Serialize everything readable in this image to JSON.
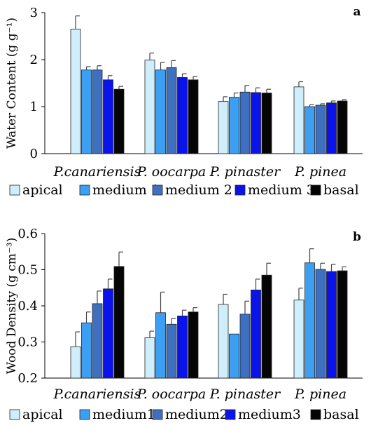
{
  "colors": {
    "apical": "#cdeefa",
    "medium 1": "#3d9ff2",
    "medium 2": "#3f6fbf",
    "medium 3": "#0a14ea",
    "basal": "#050505"
  },
  "chart_data": [
    {
      "type": "bar",
      "panel_label": "a",
      "ylabel": "Water Content (g g⁻¹)",
      "ylim": [
        0,
        3
      ],
      "yticks": [
        "0",
        "1",
        "2",
        "3"
      ],
      "ytick_values": [
        0,
        1,
        2,
        3
      ],
      "categories": [
        "P.canariensis",
        "P. oocarpa",
        "P. pinaster",
        "P. pinea"
      ],
      "legend": [
        "apical",
        "medium 1",
        "medium 2",
        "medium 3",
        "basal"
      ],
      "legend_position": "bottom",
      "series": [
        {
          "name": "apical",
          "values": [
            2.65,
            1.99,
            1.11,
            1.42
          ],
          "errors": [
            0.28,
            0.15,
            0.1,
            0.11
          ]
        },
        {
          "name": "medium 1",
          "values": [
            1.78,
            1.78,
            1.2,
            1.0
          ],
          "errors": [
            0.07,
            0.16,
            0.09,
            0.04
          ]
        },
        {
          "name": "medium 2",
          "values": [
            1.78,
            1.83,
            1.31,
            1.03
          ],
          "errors": [
            0.09,
            0.15,
            0.14,
            0.03
          ]
        },
        {
          "name": "medium 3",
          "values": [
            1.57,
            1.62,
            1.3,
            1.08
          ],
          "errors": [
            0.09,
            0.08,
            0.1,
            0.04
          ]
        },
        {
          "name": "basal",
          "values": [
            1.37,
            1.57,
            1.29,
            1.12
          ],
          "errors": [
            0.06,
            0.07,
            0.08,
            0.03
          ]
        }
      ]
    },
    {
      "type": "bar",
      "panel_label": "b",
      "ylabel": "Wood Density (g cm⁻³)",
      "ylim": [
        0.2,
        0.6
      ],
      "yticks": [
        "0.2",
        "0.3",
        "0.4",
        "0.5",
        "0.6"
      ],
      "ytick_values": [
        0.2,
        0.3,
        0.4,
        0.5,
        0.6
      ],
      "categories": [
        "P.canariensis",
        "P. oocarpa",
        "P. pinaster",
        "P. pinea"
      ],
      "legend": [
        "apical",
        "medium1",
        "medium2",
        "medium3",
        "basal"
      ],
      "legend_position": "bottom",
      "series": [
        {
          "name": "apical",
          "values": [
            0.287,
            0.312,
            0.404,
            0.416
          ],
          "errors": [
            0.041,
            0.018,
            0.028,
            0.033
          ]
        },
        {
          "name": "medium1",
          "values": [
            0.353,
            0.381,
            0.322,
            0.519
          ],
          "errors": [
            0.03,
            0.057,
            0.0,
            0.039
          ]
        },
        {
          "name": "medium2",
          "values": [
            0.406,
            0.349,
            0.377,
            0.501
          ],
          "errors": [
            0.035,
            0.016,
            0.036,
            0.017
          ]
        },
        {
          "name": "medium3",
          "values": [
            0.447,
            0.372,
            0.444,
            0.495
          ],
          "errors": [
            0.027,
            0.016,
            0.03,
            0.02
          ]
        },
        {
          "name": "basal",
          "values": [
            0.509,
            0.383,
            0.485,
            0.497
          ],
          "errors": [
            0.04,
            0.012,
            0.033,
            0.011
          ]
        }
      ]
    }
  ]
}
